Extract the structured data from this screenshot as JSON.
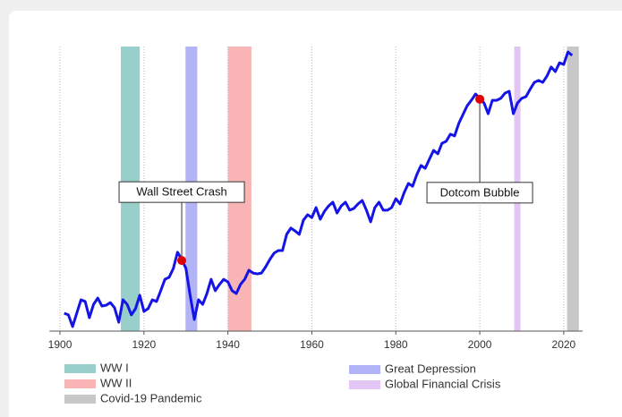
{
  "chart_data": {
    "type": "line",
    "x": [
      1901,
      1902,
      1903,
      1904,
      1905,
      1906,
      1907,
      1908,
      1909,
      1910,
      1911,
      1912,
      1913,
      1914,
      1915,
      1916,
      1917,
      1918,
      1919,
      1920,
      1921,
      1922,
      1923,
      1924,
      1925,
      1926,
      1927,
      1928,
      1929,
      1930,
      1931,
      1932,
      1933,
      1934,
      1935,
      1936,
      1937,
      1938,
      1939,
      1940,
      1941,
      1942,
      1943,
      1944,
      1945,
      1946,
      1947,
      1948,
      1949,
      1950,
      1951,
      1952,
      1953,
      1954,
      1955,
      1956,
      1957,
      1958,
      1959,
      1960,
      1961,
      1962,
      1963,
      1964,
      1965,
      1966,
      1967,
      1968,
      1969,
      1970,
      1971,
      1972,
      1973,
      1974,
      1975,
      1976,
      1977,
      1978,
      1979,
      1980,
      1981,
      1982,
      1983,
      1984,
      1985,
      1986,
      1987,
      1988,
      1989,
      1990,
      1991,
      1992,
      1993,
      1994,
      1995,
      1996,
      1997,
      1998,
      1999,
      2000,
      2001,
      2002,
      2003,
      2004,
      2005,
      2006,
      2007,
      2008,
      2009,
      2010,
      2011,
      2012,
      2013,
      2014,
      2015,
      2016,
      2017,
      2018,
      2019,
      2020,
      2021,
      2022
    ],
    "values": [
      6.3,
      5.7,
      1.6,
      6.3,
      11,
      10.4,
      4.7,
      9.4,
      11.6,
      8.8,
      9.1,
      10,
      8.2,
      3.1,
      11,
      9.4,
      5.7,
      7.9,
      12.6,
      6.9,
      7.9,
      11,
      10.4,
      14.2,
      18.2,
      18.9,
      22,
      27.7,
      25.2,
      22,
      12.6,
      4.1,
      11,
      9.4,
      13.2,
      18.2,
      14.2,
      16.4,
      18.2,
      17.3,
      14.2,
      13.2,
      16.4,
      18.2,
      21.4,
      20.4,
      20.1,
      20.4,
      22.6,
      25.2,
      27.4,
      28.3,
      28.3,
      34,
      36.2,
      35.2,
      34,
      39,
      40.9,
      39.9,
      43.4,
      39.3,
      42.1,
      44,
      45.3,
      41.5,
      44,
      45.3,
      42.5,
      43.1,
      44.7,
      45.9,
      42.5,
      38.4,
      43.4,
      45.3,
      42.5,
      42.5,
      43.4,
      46.5,
      44.7,
      48.7,
      51.9,
      50.9,
      55,
      58.2,
      57.2,
      60.4,
      63.5,
      62.3,
      66,
      66.7,
      69.2,
      68.6,
      73,
      76.1,
      79.2,
      81.1,
      83.3,
      81.8,
      80.2,
      76.4,
      81.1,
      81.1,
      81.8,
      83.6,
      84.3,
      76.4,
      80.2,
      81.8,
      82.4,
      85,
      87.4,
      88.1,
      87.4,
      89.6,
      92.8,
      91.2,
      94.3,
      93.7,
      98.1,
      96.9
    ],
    "color": "#1414e6",
    "xlim": [
      1897.5,
      2024.5
    ],
    "xticks": [
      1900,
      1920,
      1940,
      1960,
      1980,
      2000,
      2020
    ],
    "ylim": [
      0,
      100
    ],
    "grid": true,
    "bands": [
      {
        "label": "WW I",
        "start": 1914.5,
        "end": 1919,
        "color": "#99cfcb"
      },
      {
        "label": "Great Depression",
        "start": 1929.9,
        "end": 1932.7,
        "color": "#b3b3f7"
      },
      {
        "label": "WW II",
        "start": 1940,
        "end": 1945.6,
        "color": "#f9b5b5"
      },
      {
        "label": "Global Financial Crisis",
        "start": 2008.2,
        "end": 2009.7,
        "color": "#e4c6f4"
      },
      {
        "label": "Covid-19 Pandemic",
        "start": 2020.8,
        "end": 2023.6,
        "color": "#c8c8c8"
      }
    ],
    "annotations": [
      {
        "text": "Wall Street Crash",
        "x": 1929,
        "y": 24.8
      },
      {
        "text": "Dotcom Bubble",
        "x": 2000,
        "y": 81.5
      }
    ]
  }
}
